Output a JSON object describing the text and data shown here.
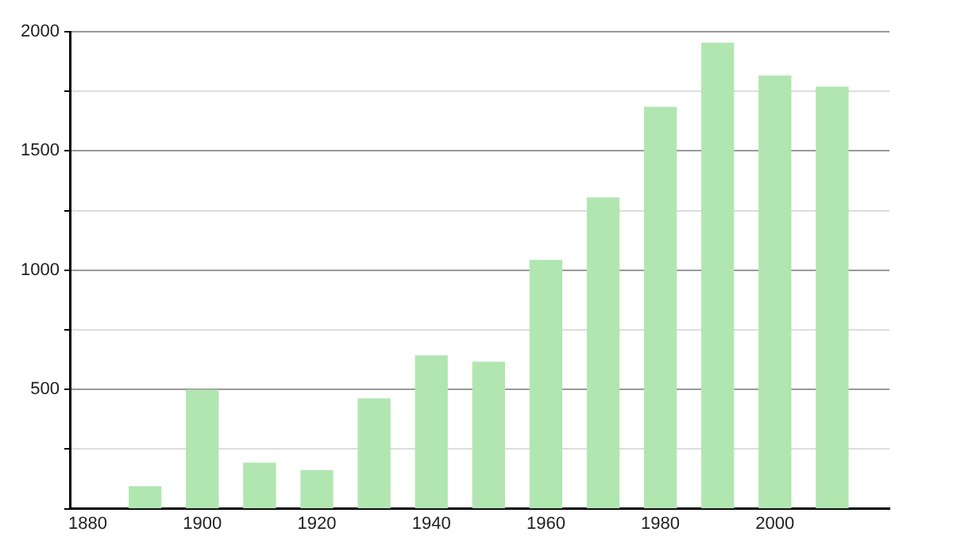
{
  "chart_data": {
    "type": "bar",
    "x": [
      1890,
      1900,
      1910,
      1920,
      1930,
      1940,
      1950,
      1960,
      1970,
      1980,
      1990,
      2000,
      2010
    ],
    "values": [
      92,
      497,
      191,
      159,
      460,
      641,
      614,
      1041,
      1303,
      1683,
      1952,
      1814,
      1768
    ],
    "color": "#b1e6b1",
    "xlim": [
      1877,
      2020
    ],
    "xticks": [
      1880,
      1900,
      1920,
      1940,
      1960,
      1980,
      2000
    ],
    "ylim": [
      0,
      2000
    ],
    "yticks": [
      {
        "value": 0,
        "label": null
      },
      {
        "value": 250,
        "label": null
      },
      500,
      {
        "value": 750,
        "label": null
      },
      1000,
      {
        "value": 1250,
        "label": null
      },
      1500,
      {
        "value": 1750,
        "label": null
      },
      2000
    ],
    "grid": "y"
  }
}
